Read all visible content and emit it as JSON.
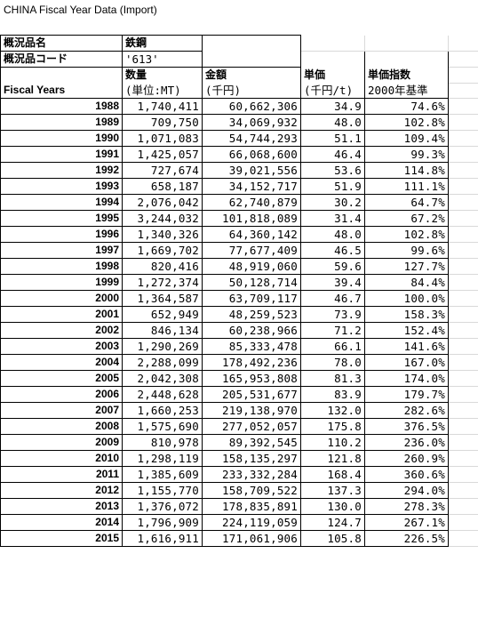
{
  "title": "CHINA Fiscal Year Data  (Import)",
  "info": {
    "item_name_label": "概況品名",
    "item_name_value": "鉄鋼",
    "item_code_label": "概況品コード",
    "item_code_value": "'613'"
  },
  "headers": {
    "row_label": "Fiscal Years",
    "quantity": "数量",
    "quantity_unit": "(単位:MT)",
    "amount": "金額",
    "amount_unit": "(千円)",
    "unit_price": "単価",
    "unit_price_unit": "(千円/t)",
    "index": "単価指数",
    "index_unit": "2000年基準"
  },
  "rows": [
    {
      "year": "1988",
      "qty": "1,740,411",
      "amount": "60,662,306",
      "price": "34.9",
      "index": "74.6%"
    },
    {
      "year": "1989",
      "qty": "709,750",
      "amount": "34,069,932",
      "price": "48.0",
      "index": "102.8%"
    },
    {
      "year": "1990",
      "qty": "1,071,083",
      "amount": "54,744,293",
      "price": "51.1",
      "index": "109.4%"
    },
    {
      "year": "1991",
      "qty": "1,425,057",
      "amount": "66,068,600",
      "price": "46.4",
      "index": "99.3%"
    },
    {
      "year": "1992",
      "qty": "727,674",
      "amount": "39,021,556",
      "price": "53.6",
      "index": "114.8%"
    },
    {
      "year": "1993",
      "qty": "658,187",
      "amount": "34,152,717",
      "price": "51.9",
      "index": "111.1%"
    },
    {
      "year": "1994",
      "qty": "2,076,042",
      "amount": "62,740,879",
      "price": "30.2",
      "index": "64.7%"
    },
    {
      "year": "1995",
      "qty": "3,244,032",
      "amount": "101,818,089",
      "price": "31.4",
      "index": "67.2%"
    },
    {
      "year": "1996",
      "qty": "1,340,326",
      "amount": "64,360,142",
      "price": "48.0",
      "index": "102.8%"
    },
    {
      "year": "1997",
      "qty": "1,669,702",
      "amount": "77,677,409",
      "price": "46.5",
      "index": "99.6%"
    },
    {
      "year": "1998",
      "qty": "820,416",
      "amount": "48,919,060",
      "price": "59.6",
      "index": "127.7%"
    },
    {
      "year": "1999",
      "qty": "1,272,374",
      "amount": "50,128,714",
      "price": "39.4",
      "index": "84.4%"
    },
    {
      "year": "2000",
      "qty": "1,364,587",
      "amount": "63,709,117",
      "price": "46.7",
      "index": "100.0%"
    },
    {
      "year": "2001",
      "qty": "652,949",
      "amount": "48,259,523",
      "price": "73.9",
      "index": "158.3%"
    },
    {
      "year": "2002",
      "qty": "846,134",
      "amount": "60,238,966",
      "price": "71.2",
      "index": "152.4%"
    },
    {
      "year": "2003",
      "qty": "1,290,269",
      "amount": "85,333,478",
      "price": "66.1",
      "index": "141.6%"
    },
    {
      "year": "2004",
      "qty": "2,288,099",
      "amount": "178,492,236",
      "price": "78.0",
      "index": "167.0%"
    },
    {
      "year": "2005",
      "qty": "2,042,308",
      "amount": "165,953,808",
      "price": "81.3",
      "index": "174.0%"
    },
    {
      "year": "2006",
      "qty": "2,448,628",
      "amount": "205,531,677",
      "price": "83.9",
      "index": "179.7%"
    },
    {
      "year": "2007",
      "qty": "1,660,253",
      "amount": "219,138,970",
      "price": "132.0",
      "index": "282.6%"
    },
    {
      "year": "2008",
      "qty": "1,575,690",
      "amount": "277,052,057",
      "price": "175.8",
      "index": "376.5%"
    },
    {
      "year": "2009",
      "qty": "810,978",
      "amount": "89,392,545",
      "price": "110.2",
      "index": "236.0%"
    },
    {
      "year": "2010",
      "qty": "1,298,119",
      "amount": "158,135,297",
      "price": "121.8",
      "index": "260.9%"
    },
    {
      "year": "2011",
      "qty": "1,385,609",
      "amount": "233,332,284",
      "price": "168.4",
      "index": "360.6%"
    },
    {
      "year": "2012",
      "qty": "1,155,770",
      "amount": "158,709,522",
      "price": "137.3",
      "index": "294.0%"
    },
    {
      "year": "2013",
      "qty": "1,376,072",
      "amount": "178,835,891",
      "price": "130.0",
      "index": "278.3%"
    },
    {
      "year": "2014",
      "qty": "1,796,909",
      "amount": "224,119,059",
      "price": "124.7",
      "index": "267.1%"
    },
    {
      "year": "2015",
      "qty": "1,616,911",
      "amount": "171,061,906",
      "price": "105.8",
      "index": "226.5%"
    }
  ]
}
